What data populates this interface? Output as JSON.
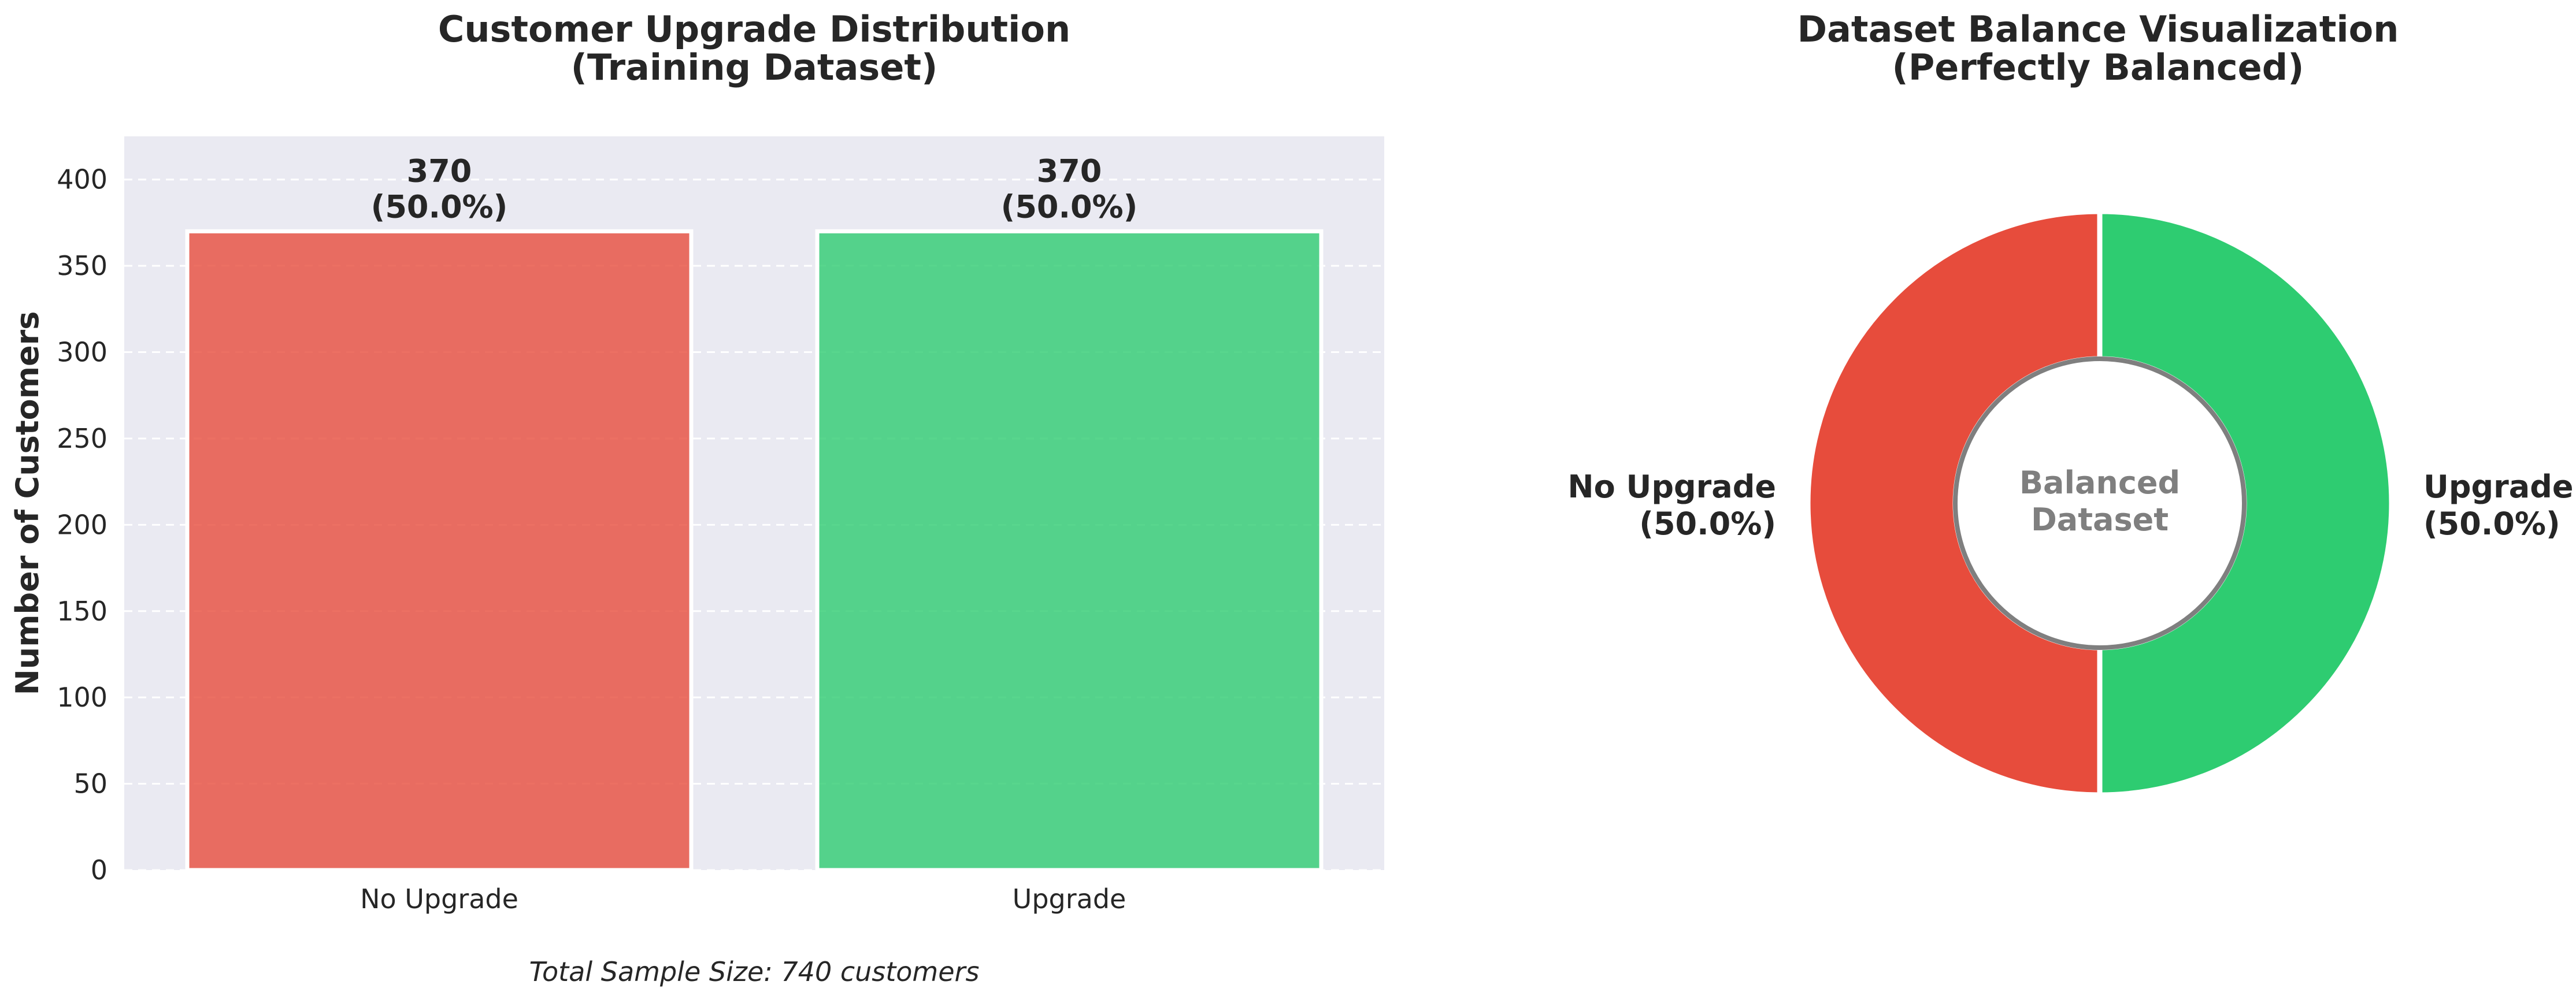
{
  "chart_data": [
    {
      "type": "bar",
      "title": "Customer Upgrade Distribution",
      "subtitle": "(Training Dataset)",
      "xlabel": "",
      "ylabel": "Number of Customers",
      "categories": [
        "No Upgrade",
        "Upgrade"
      ],
      "values": [
        370,
        370
      ],
      "value_labels": [
        "370",
        "370"
      ],
      "percent_labels": [
        "(50.0%)",
        "(50.0%)"
      ],
      "colors": [
        "#e74c3c",
        "#2ecc71"
      ],
      "ylim": [
        0,
        425
      ],
      "yticks": [
        0,
        50,
        100,
        150,
        200,
        250,
        300,
        350,
        400
      ],
      "grid": true,
      "background": "#eaeaf2",
      "footnote": "Total Sample Size: 740 customers"
    },
    {
      "type": "pie",
      "title": "Dataset Balance Visualization",
      "subtitle": "(Perfectly Balanced)",
      "donut": true,
      "slices": [
        {
          "name": "Upgrade",
          "value": 50.0,
          "percent_label": "(50.0%)",
          "color": "#2ecc71"
        },
        {
          "name": "No Upgrade",
          "value": 50.0,
          "percent_label": "(50.0%)",
          "color": "#e74c3c"
        }
      ],
      "center_text": [
        "Balanced",
        "Dataset"
      ],
      "center_text_color": "#7f7f7f"
    }
  ]
}
